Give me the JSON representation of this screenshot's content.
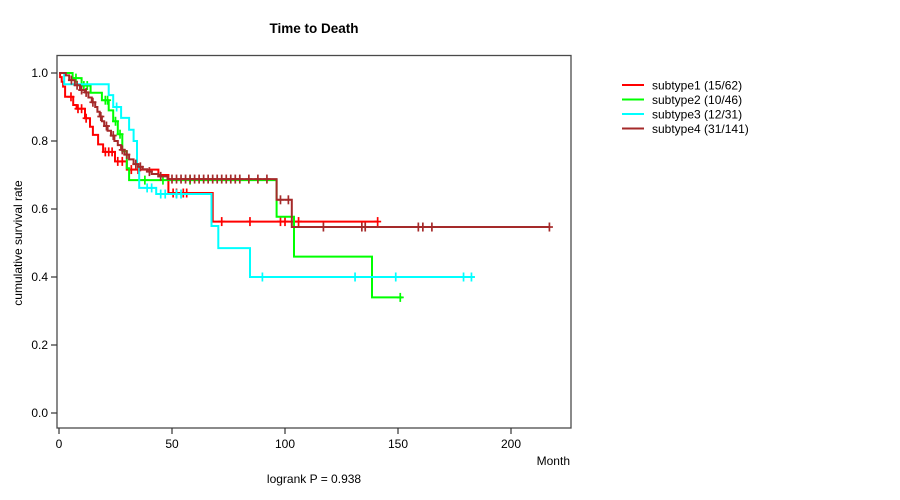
{
  "title": "Time to Death",
  "footer": {
    "logrank": "logrank P = 0.938"
  },
  "axes": {
    "x": {
      "label": "Month",
      "ticks": [
        0,
        50,
        100,
        150,
        200
      ]
    },
    "y": {
      "label": "cumulative survival rate",
      "ticks": [
        0,
        0.2,
        0.4,
        0.6,
        0.8,
        1
      ]
    }
  },
  "chart_data": {
    "type": "line",
    "variant": "kaplan-meier-step",
    "title": "Time to Death",
    "xlabel": "Month",
    "ylabel": "cumulative survival rate",
    "xlim": [
      0,
      226
    ],
    "ylim": [
      0,
      1.04
    ],
    "grid": false,
    "legend_position": "outside-right",
    "annotation": "logrank P = 0.938",
    "series": [
      {
        "name": "subtype1 (15/62)",
        "color": "#ff0000",
        "end_month": 141,
        "steps": [
          [
            0,
            1.0
          ],
          [
            0.5,
            0.988
          ],
          [
            1.2,
            0.974
          ],
          [
            1.8,
            0.96
          ],
          [
            2.7,
            0.93
          ],
          [
            6.3,
            0.906
          ],
          [
            7.8,
            0.895
          ],
          [
            11.5,
            0.867
          ],
          [
            13.7,
            0.842
          ],
          [
            15,
            0.818
          ],
          [
            17.3,
            0.79
          ],
          [
            19.5,
            0.768
          ],
          [
            24.8,
            0.74
          ],
          [
            30,
            0.716
          ],
          [
            44,
            0.7
          ],
          [
            48.4,
            0.647
          ],
          [
            68,
            0.563
          ]
        ],
        "censor_months": [
          5.3,
          8.4,
          10,
          12,
          20.5,
          22,
          23.5,
          26,
          28,
          32,
          35,
          50.5,
          52,
          55,
          56.5,
          72,
          84.5,
          98,
          100,
          106,
          141
        ]
      },
      {
        "name": "subtype2 (10/46)",
        "color": "#00ff00",
        "end_month": 152,
        "steps": [
          [
            0,
            1.0
          ],
          [
            6,
            0.985
          ],
          [
            10,
            0.963
          ],
          [
            14,
            0.942
          ],
          [
            19,
            0.92
          ],
          [
            22,
            0.89
          ],
          [
            24,
            0.858
          ],
          [
            26,
            0.82
          ],
          [
            28,
            0.77
          ],
          [
            30,
            0.72
          ],
          [
            31,
            0.685
          ],
          [
            96.3,
            0.577
          ],
          [
            104,
            0.46
          ],
          [
            138.5,
            0.34
          ]
        ],
        "censor_months": [
          7.5,
          11,
          12.5,
          20.5,
          21.5,
          25,
          27,
          38,
          46,
          58,
          151
        ]
      },
      {
        "name": "subtype3 (12/31)",
        "color": "#00ffff",
        "end_month": 184,
        "steps": [
          [
            0,
            1.0
          ],
          [
            2.3,
            0.967
          ],
          [
            22,
            0.935
          ],
          [
            24,
            0.9
          ],
          [
            27.5,
            0.868
          ],
          [
            31,
            0.833
          ],
          [
            33,
            0.8
          ],
          [
            34.5,
            0.73
          ],
          [
            35.5,
            0.662
          ],
          [
            43,
            0.644
          ],
          [
            67.5,
            0.55
          ],
          [
            70.5,
            0.485
          ],
          [
            84.5,
            0.4
          ]
        ],
        "censor_months": [
          25.5,
          39,
          41,
          45,
          47,
          52,
          54,
          90,
          131,
          149,
          179,
          182.5
        ]
      },
      {
        "name": "subtype4 (31/141)",
        "color": "#a52a2a",
        "end_month": 217,
        "steps": [
          [
            0,
            1.0
          ],
          [
            3,
            0.993
          ],
          [
            4.5,
            0.979
          ],
          [
            7,
            0.964
          ],
          [
            9.3,
            0.95
          ],
          [
            11.5,
            0.943
          ],
          [
            13,
            0.928
          ],
          [
            14.5,
            0.914
          ],
          [
            16,
            0.9
          ],
          [
            17,
            0.886
          ],
          [
            18,
            0.872
          ],
          [
            19,
            0.858
          ],
          [
            20,
            0.844
          ],
          [
            21.5,
            0.83
          ],
          [
            23,
            0.816
          ],
          [
            24.5,
            0.8
          ],
          [
            26,
            0.788
          ],
          [
            27.5,
            0.774
          ],
          [
            29,
            0.76
          ],
          [
            31,
            0.746
          ],
          [
            33,
            0.732
          ],
          [
            35,
            0.724
          ],
          [
            37,
            0.717
          ],
          [
            39,
            0.71
          ],
          [
            41,
            0.703
          ],
          [
            44,
            0.696
          ],
          [
            48,
            0.688
          ],
          [
            96.3,
            0.627
          ],
          [
            103,
            0.547
          ]
        ],
        "censor_months": [
          5.5,
          8,
          10,
          12,
          15,
          18.5,
          21,
          24,
          28,
          30,
          34,
          36,
          40,
          45,
          50,
          52,
          54,
          56,
          58,
          60,
          62,
          64,
          66,
          68,
          70,
          72,
          74,
          76,
          78,
          80,
          84,
          88,
          92,
          98,
          101.5,
          117,
          134,
          135.5,
          159,
          161,
          165,
          217
        ]
      }
    ]
  }
}
